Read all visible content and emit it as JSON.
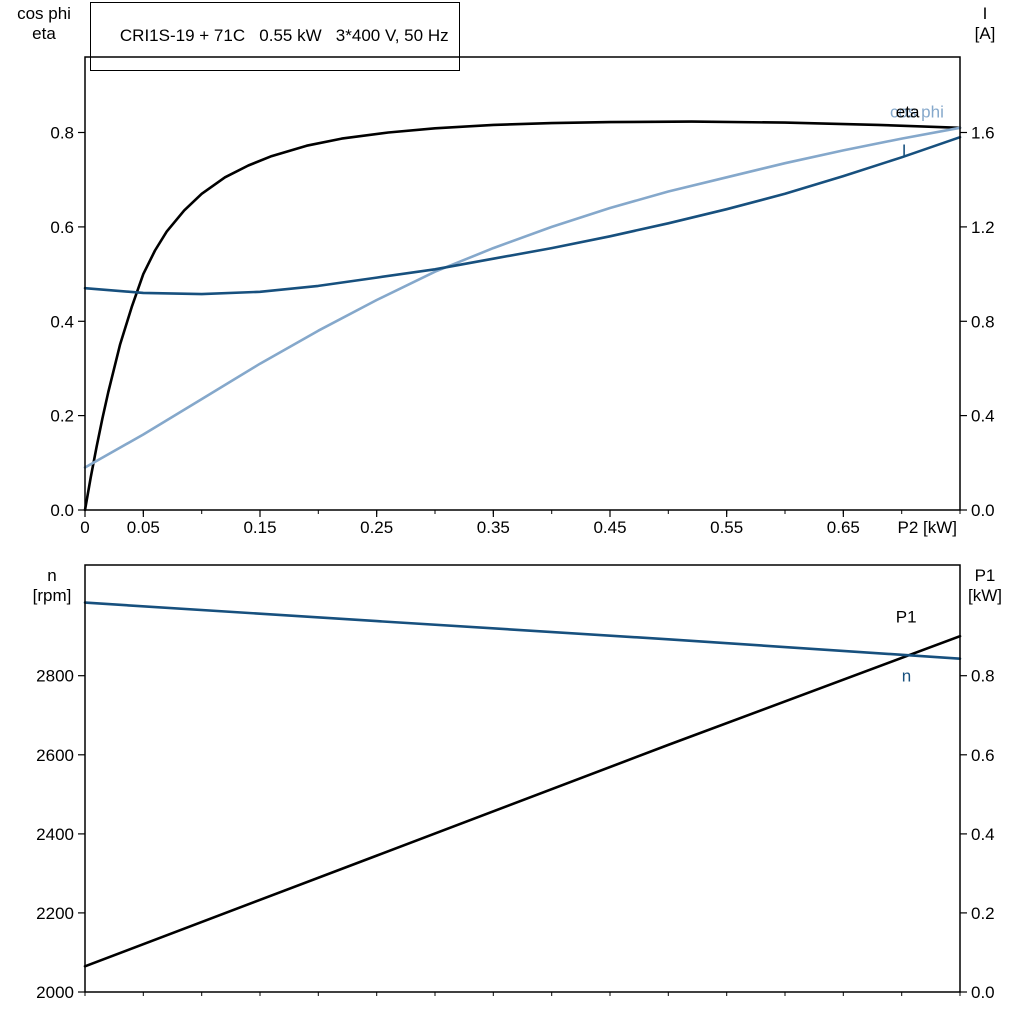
{
  "colors": {
    "black": "#000000",
    "dark_blue": "#17507e",
    "light_blue": "#85a8cb",
    "background": "#ffffff"
  },
  "chart_data": [
    {
      "id": "top",
      "type": "line",
      "title": "CRI1S-19 + 71C   0.55 kW   3*400 V, 50 Hz",
      "x_axis": {
        "label": "P2 [kW]",
        "range": [
          0,
          0.75
        ],
        "minor_tick_step": 0.05,
        "labeled_ticks": [
          0,
          0.05,
          0.15,
          0.25,
          0.35,
          0.45,
          0.55,
          0.65
        ],
        "tick_labels": [
          "0",
          "0.05",
          "0.15",
          "0.25",
          "0.35",
          "0.45",
          "0.55",
          "0.65"
        ]
      },
      "left_axis": {
        "title": [
          "cos phi",
          "eta"
        ],
        "range": [
          0,
          0.96
        ],
        "labeled_ticks": [
          0,
          0.2,
          0.4,
          0.6,
          0.8
        ],
        "tick_labels": [
          "0.0",
          "0.2",
          "0.4",
          "0.6",
          "0.8"
        ]
      },
      "right_axis": {
        "title": [
          "I",
          "[A]"
        ],
        "range": [
          0,
          1.92
        ],
        "labeled_ticks": [
          0,
          0.4,
          0.8,
          1.2,
          1.6
        ],
        "tick_labels": [
          "0.0",
          "0.4",
          "0.8",
          "1.2",
          "1.6"
        ]
      },
      "series": [
        {
          "name": "eta",
          "axis": "left",
          "color_key": "black",
          "x": [
            0,
            0.005,
            0.01,
            0.015,
            0.02,
            0.03,
            0.04,
            0.05,
            0.06,
            0.07,
            0.085,
            0.1,
            0.12,
            0.14,
            0.16,
            0.19,
            0.22,
            0.26,
            0.3,
            0.35,
            0.4,
            0.45,
            0.52,
            0.6,
            0.68,
            0.75
          ],
          "values": [
            0,
            0.07,
            0.135,
            0.195,
            0.25,
            0.35,
            0.43,
            0.5,
            0.55,
            0.59,
            0.635,
            0.67,
            0.705,
            0.73,
            0.75,
            0.772,
            0.787,
            0.8,
            0.809,
            0.816,
            0.82,
            0.822,
            0.823,
            0.821,
            0.816,
            0.81
          ]
        },
        {
          "name": "cos phi",
          "axis": "left",
          "color_key": "light_blue",
          "x": [
            0,
            0.05,
            0.1,
            0.15,
            0.2,
            0.25,
            0.3,
            0.35,
            0.4,
            0.45,
            0.5,
            0.55,
            0.6,
            0.65,
            0.7,
            0.75
          ],
          "values": [
            0.09,
            0.16,
            0.235,
            0.31,
            0.38,
            0.445,
            0.505,
            0.555,
            0.6,
            0.64,
            0.675,
            0.705,
            0.735,
            0.762,
            0.787,
            0.81
          ]
        },
        {
          "name": "I",
          "axis": "right",
          "color_key": "dark_blue",
          "x": [
            0,
            0.05,
            0.1,
            0.15,
            0.2,
            0.25,
            0.3,
            0.35,
            0.4,
            0.45,
            0.5,
            0.55,
            0.6,
            0.65,
            0.7,
            0.75
          ],
          "values": [
            0.94,
            0.92,
            0.915,
            0.925,
            0.95,
            0.985,
            1.02,
            1.065,
            1.11,
            1.16,
            1.215,
            1.275,
            1.34,
            1.415,
            1.495,
            1.58
          ]
        }
      ],
      "annotations": [
        {
          "text": "cos phi",
          "color_key": "light_blue",
          "axis": "left",
          "x": 0.69,
          "y": 0.845
        },
        {
          "text": "eta",
          "color_key": "black",
          "axis": "left",
          "x": 0.695,
          "y": 0.845
        },
        {
          "text": "I",
          "color_key": "dark_blue",
          "axis": "right",
          "x": 0.7,
          "y": 1.525
        }
      ]
    },
    {
      "id": "bottom",
      "type": "line",
      "title": "",
      "x_axis": {
        "label": "",
        "range": [
          0,
          0.75
        ],
        "minor_tick_step": 0.05,
        "labeled_ticks": [],
        "tick_labels": []
      },
      "left_axis": {
        "title": [
          "n",
          "[rpm]"
        ],
        "range": [
          2000,
          3080
        ],
        "labeled_ticks": [
          2000,
          2200,
          2400,
          2600,
          2800
        ],
        "tick_labels": [
          "2000",
          "2200",
          "2400",
          "2600",
          "2800"
        ]
      },
      "right_axis": {
        "title": [
          "P1",
          "[kW]"
        ],
        "range": [
          0,
          1.08
        ],
        "labeled_ticks": [
          0,
          0.2,
          0.4,
          0.6,
          0.8
        ],
        "tick_labels": [
          "0.0",
          "0.2",
          "0.4",
          "0.6",
          "0.8"
        ]
      },
      "series": [
        {
          "name": "P1",
          "axis": "right",
          "color_key": "black",
          "x": [
            0,
            0.25,
            0.5,
            0.75
          ],
          "values": [
            0.065,
            0.345,
            0.625,
            0.9
          ]
        },
        {
          "name": "n",
          "axis": "left",
          "color_key": "dark_blue",
          "x": [
            0,
            0.25,
            0.5,
            0.75
          ],
          "values": [
            2985,
            2938,
            2892,
            2843
          ]
        }
      ],
      "annotations": [
        {
          "text": "P1",
          "color_key": "black",
          "axis": "right",
          "x": 0.695,
          "y": 0.95
        },
        {
          "text": "n",
          "color_key": "dark_blue",
          "axis": "left",
          "x": 0.7,
          "y": 2800
        }
      ]
    }
  ]
}
